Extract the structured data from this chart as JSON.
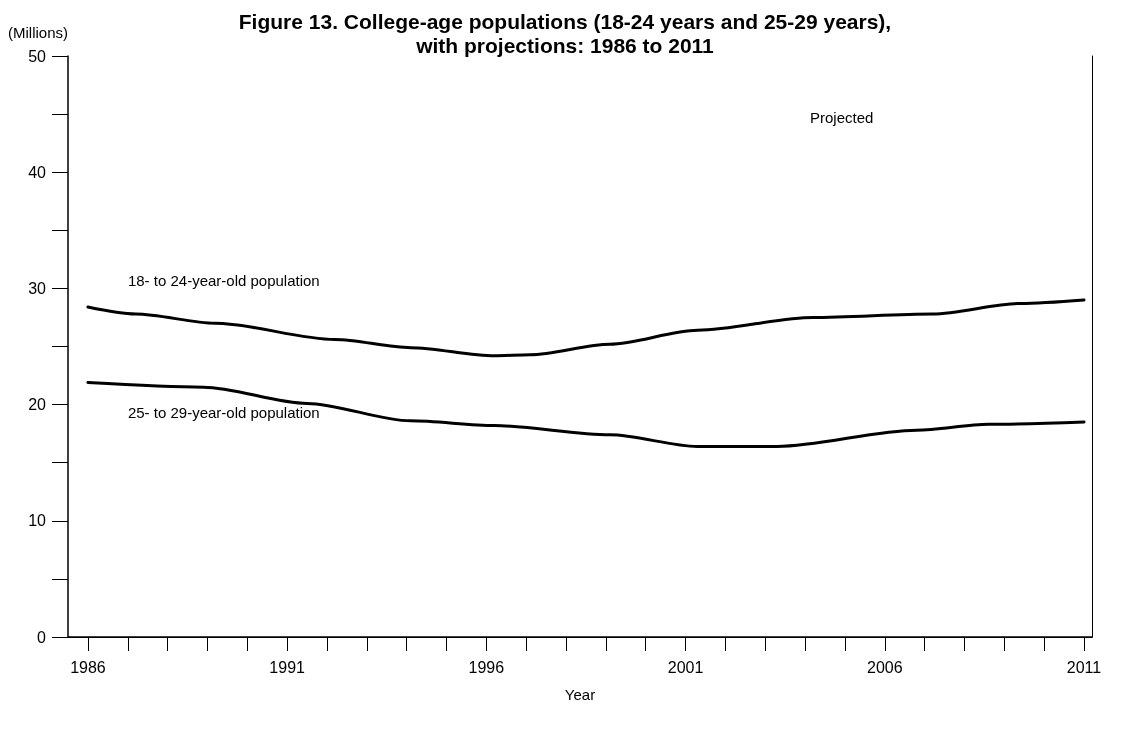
{
  "chart_data": {
    "type": "line",
    "title": "Figure 13. College-age populations (18-24 years and 25-29 years),\nwith projections: 1986 to 2011",
    "ylabel": "(Millions)",
    "xlabel": "Year",
    "annotations": [
      "Projected"
    ],
    "series": [
      {
        "name": "18- to 24-year-old population",
        "color": "#000000",
        "x": [
          1986,
          1987.2,
          1989.2,
          1992.2,
          1994.1,
          1996.2,
          1997.1,
          1999.1,
          2001.3,
          2004.2,
          2007.2,
          2009.4,
          2011
        ],
        "values": [
          28.4,
          27.8,
          27.0,
          25.6,
          24.9,
          24.2,
          24.3,
          25.2,
          26.4,
          27.5,
          27.8,
          28.7,
          29.0
        ]
      },
      {
        "name": "25- to 29-year-old population",
        "color": "#000000",
        "x": [
          1986,
          1988.9,
          1991.5,
          1994.1,
          1996.2,
          1999.1,
          2001.3,
          2003.3,
          2006.8,
          2008.6,
          2011
        ],
        "values": [
          21.9,
          21.5,
          20.1,
          18.6,
          18.2,
          17.4,
          16.4,
          16.4,
          17.8,
          18.3,
          18.5
        ]
      }
    ],
    "xlim": [
      1985.5,
      2011.2
    ],
    "xticks": [
      1986,
      {
        "value": 1987,
        "label": null
      },
      {
        "value": 1988,
        "label": null
      },
      {
        "value": 1989,
        "label": null
      },
      {
        "value": 1990,
        "label": null
      },
      1991,
      {
        "value": 1992,
        "label": null
      },
      {
        "value": 1993,
        "label": null
      },
      {
        "value": 1994,
        "label": null
      },
      {
        "value": 1995,
        "label": null
      },
      1996,
      {
        "value": 1997,
        "label": null
      },
      {
        "value": 1998,
        "label": null
      },
      {
        "value": 1999,
        "label": null
      },
      {
        "value": 2000,
        "label": null
      },
      2001,
      {
        "value": 2002,
        "label": null
      },
      {
        "value": 2003,
        "label": null
      },
      {
        "value": 2004,
        "label": null
      },
      {
        "value": 2005,
        "label": null
      },
      2006,
      {
        "value": 2007,
        "label": null
      },
      {
        "value": 2008,
        "label": null
      },
      {
        "value": 2009,
        "label": null
      },
      {
        "value": 2010,
        "label": null
      },
      2011
    ],
    "ylim": [
      0,
      50
    ],
    "yticks": [
      0,
      {
        "value": 5,
        "label": null
      },
      10,
      {
        "value": 15,
        "label": null
      },
      20,
      {
        "value": 25,
        "label": null
      },
      30,
      {
        "value": 35,
        "label": null
      },
      40,
      {
        "value": 45,
        "label": null
      },
      50
    ],
    "grid": false,
    "legend": false,
    "marker": "none",
    "line_style": "solid"
  }
}
